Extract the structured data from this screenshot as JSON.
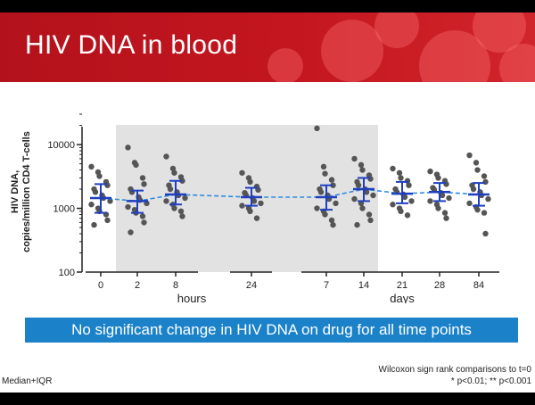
{
  "title": "HIV DNA in blood",
  "callout": "No significant change in HIV DNA on drug for all time points",
  "footnote_left": "Median+IQR",
  "footnote_right_line1": "Wilcoxon sign rank comparisons to t=0",
  "footnote_right_line2": "*  p<0.01; ** p<0.001",
  "colors": {
    "banner": "#c4161f",
    "callout": "#1b82c9",
    "median": "#1f3fbf",
    "trend": "#2f8be0",
    "points": "#555555",
    "shaded_region": "#e2e2e2"
  },
  "chart_data": {
    "type": "scatter",
    "ylabel_line1": "HIV DNA,",
    "ylabel_line2": "copies/million CD4 T-cells",
    "y_scale": "log",
    "ylim": [
      100,
      30000
    ],
    "y_ticks": [
      {
        "value": 100,
        "label": "100"
      },
      {
        "value": 1000,
        "label": "1000"
      },
      {
        "value": 10000,
        "label": "10000"
      }
    ],
    "x_groups": [
      {
        "label": "hours",
        "categories": [
          "0",
          "2",
          "8",
          "24"
        ]
      },
      {
        "label": "days",
        "categories": [
          "7",
          "14",
          "21",
          "28",
          "84"
        ]
      }
    ],
    "shaded_categories": [
      "2",
      "8",
      "24",
      "7"
    ],
    "grid": false,
    "series": [
      {
        "x": "0",
        "median": 1450,
        "q1": 850,
        "q3": 2400,
        "points": [
          4500,
          3700,
          3200,
          2600,
          2300,
          2000,
          1800,
          1600,
          1450,
          1300,
          1150,
          1000,
          900,
          800,
          650,
          550
        ]
      },
      {
        "x": "2",
        "median": 1300,
        "q1": 850,
        "q3": 1900,
        "points": [
          9000,
          5200,
          4800,
          3000,
          2400,
          2000,
          1800,
          1500,
          1350,
          1200,
          1050,
          950,
          850,
          750,
          600,
          420
        ]
      },
      {
        "x": "8",
        "median": 1650,
        "q1": 1150,
        "q3": 2700,
        "points": [
          6500,
          4200,
          3600,
          3100,
          2700,
          2300,
          2000,
          1800,
          1600,
          1450,
          1300,
          1150,
          1000,
          900,
          750
        ]
      },
      {
        "x": "24",
        "median": 1500,
        "q1": 1100,
        "q3": 2100,
        "points": [
          3600,
          3000,
          2600,
          2200,
          1950,
          1750,
          1600,
          1450,
          1300,
          1200,
          1100,
          1000,
          900,
          700
        ]
      },
      {
        "x": "7",
        "median": 1500,
        "q1": 950,
        "q3": 2300,
        "points": [
          18000,
          4500,
          3500,
          2800,
          2300,
          2000,
          1800,
          1600,
          1400,
          1200,
          1000,
          900,
          800,
          650,
          550
        ]
      },
      {
        "x": "14",
        "median": 2000,
        "q1": 1300,
        "q3": 3000,
        "points": [
          6000,
          4800,
          4000,
          3300,
          2900,
          2600,
          2300,
          2000,
          1800,
          1600,
          1400,
          1200,
          1000,
          800,
          650,
          550
        ]
      },
      {
        "x": "21",
        "median": 1700,
        "q1": 1200,
        "q3": 2600,
        "points": [
          4200,
          3600,
          3000,
          2700,
          2300,
          2000,
          1800,
          1650,
          1500,
          1300,
          1150,
          1000,
          900,
          780
        ]
      },
      {
        "x": "28",
        "median": 1800,
        "q1": 1300,
        "q3": 2500,
        "points": [
          3800,
          3400,
          3000,
          2700,
          2400,
          2100,
          1950,
          1750,
          1600,
          1450,
          1300,
          1150,
          1000,
          850,
          700
        ]
      },
      {
        "x": "84",
        "median": 1650,
        "q1": 1100,
        "q3": 2500,
        "points": [
          6800,
          5200,
          4000,
          3200,
          2600,
          2300,
          2000,
          1800,
          1600,
          1400,
          1200,
          1050,
          950,
          850,
          400
        ]
      }
    ]
  }
}
